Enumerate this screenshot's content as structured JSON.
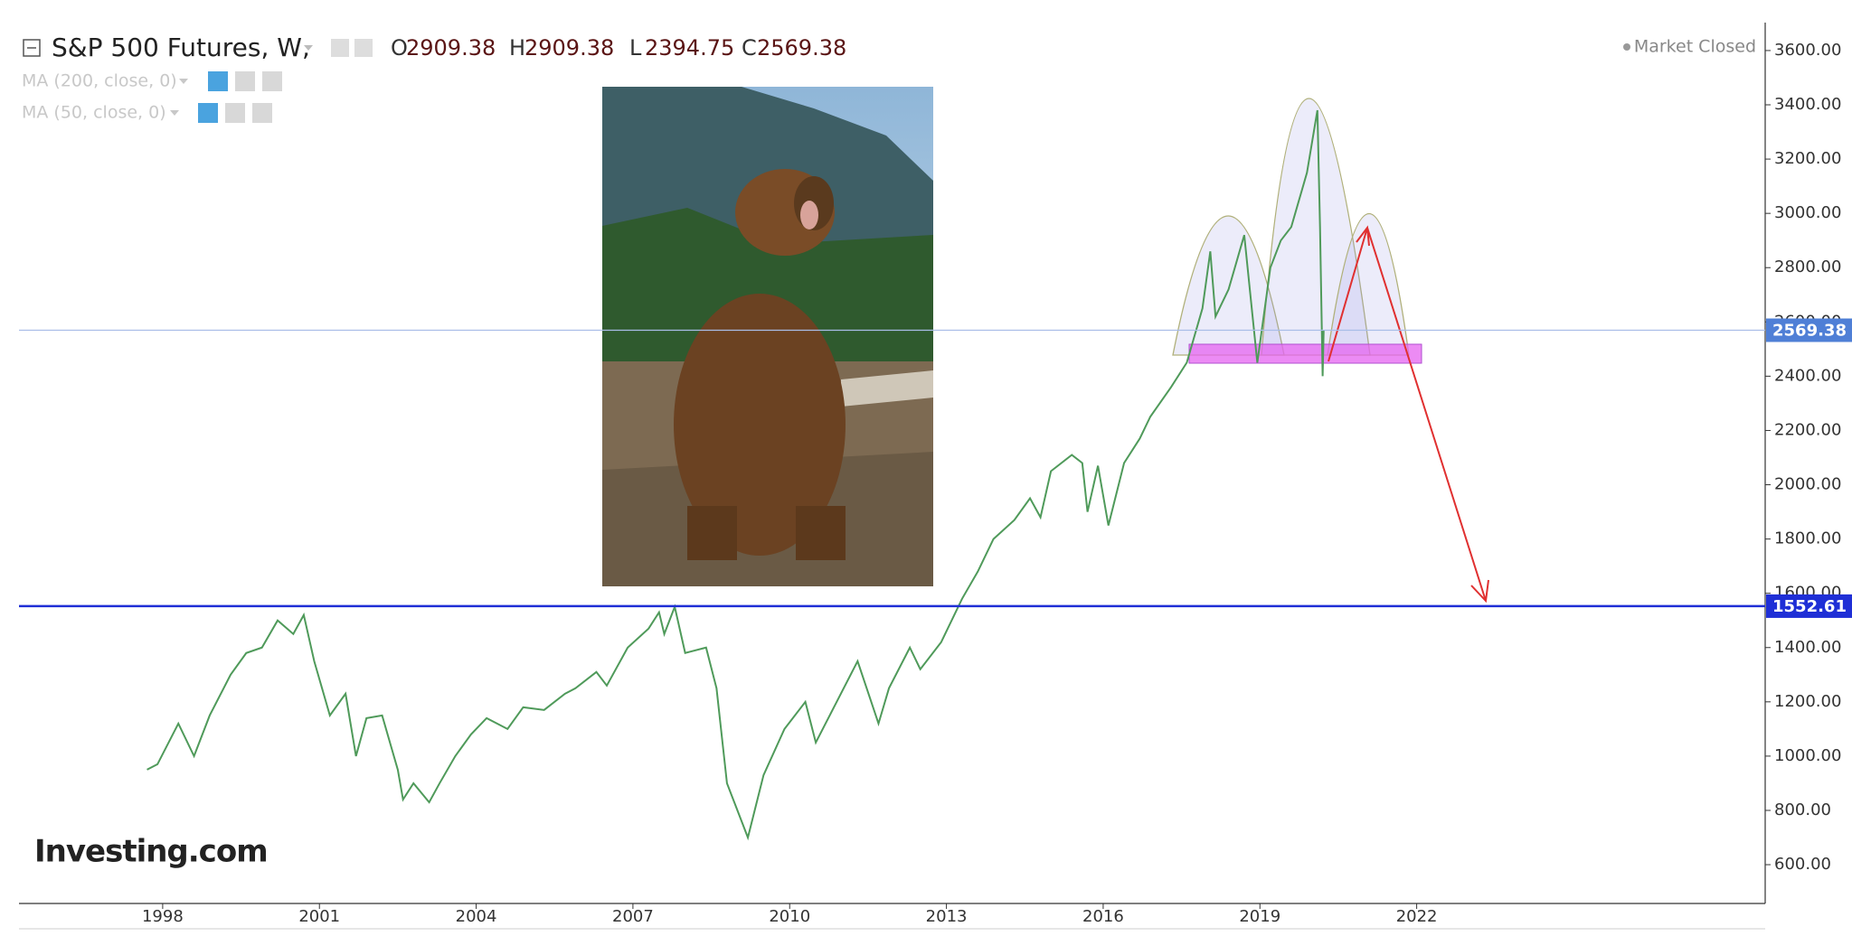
{
  "chart_data": {
    "type": "line",
    "title": "S&P 500 Futures, W,",
    "ohlc": [
      {
        "label": "O",
        "value": 2909.38
      },
      {
        "label": "H",
        "value": 2909.38
      },
      {
        "label": "L",
        "value": 2394.75
      },
      {
        "label": "C",
        "value": 2569.38
      }
    ],
    "indicators": [
      "MA (200, close, 0)",
      "MA (50, close, 0)"
    ],
    "status": "Market Closed",
    "logo": "Investing.com",
    "color": "#4f9a5a",
    "x": [
      1997.7,
      1997.9,
      1998.3,
      1998.6,
      1998.9,
      1999.3,
      1999.6,
      1999.9,
      2000.2,
      2000.5,
      2000.7,
      2000.9,
      2001.2,
      2001.5,
      2001.7,
      2001.9,
      2002.2,
      2002.5,
      2002.6,
      2002.8,
      2003.1,
      2003.3,
      2003.6,
      2003.9,
      2004.2,
      2004.6,
      2004.9,
      2005.3,
      2005.7,
      2005.9,
      2006.3,
      2006.5,
      2006.9,
      2007.3,
      2007.5,
      2007.6,
      2007.8,
      2008.0,
      2008.4,
      2008.6,
      2008.8,
      2008.9,
      2009.2,
      2009.5,
      2009.9,
      2010.3,
      2010.5,
      2010.9,
      2011.3,
      2011.7,
      2011.9,
      2012.3,
      2012.5,
      2012.9,
      2013.3,
      2013.6,
      2013.9,
      2014.3,
      2014.6,
      2014.8,
      2015.0,
      2015.4,
      2015.6,
      2015.7,
      2015.9,
      2016.1,
      2016.4,
      2016.7,
      2016.9,
      2017.3,
      2017.6,
      2017.9,
      2018.05,
      2018.15,
      2018.4,
      2018.7,
      2018.95,
      2019.2,
      2019.4,
      2019.6,
      2019.9,
      2020.1,
      2020.15,
      2020.2,
      2020.22
    ],
    "values": [
      950,
      970,
      1120,
      1000,
      1150,
      1300,
      1380,
      1400,
      1500,
      1450,
      1520,
      1350,
      1150,
      1230,
      1000,
      1140,
      1150,
      950,
      840,
      900,
      830,
      900,
      1000,
      1080,
      1140,
      1100,
      1180,
      1170,
      1230,
      1250,
      1310,
      1260,
      1400,
      1470,
      1530,
      1450,
      1550,
      1380,
      1400,
      1250,
      900,
      850,
      700,
      930,
      1100,
      1200,
      1050,
      1200,
      1350,
      1120,
      1250,
      1400,
      1320,
      1420,
      1580,
      1680,
      1800,
      1870,
      1950,
      1880,
      2050,
      2110,
      2080,
      1900,
      2070,
      1850,
      2080,
      2170,
      2250,
      2360,
      2450,
      2650,
      2860,
      2620,
      2720,
      2920,
      2450,
      2800,
      2900,
      2950,
      3150,
      3380,
      2950,
      2400,
      2569.38
    ],
    "xlim": [
      1995.25,
      2028.67
    ],
    "xticks": [
      1998,
      2001,
      2004,
      2007,
      2010,
      2013,
      2016,
      2019,
      2022
    ],
    "ylim": [
      457,
      3703
    ],
    "yticks": [
      {
        "value": 600,
        "label": "600.00"
      },
      {
        "value": 800,
        "label": "800.00"
      },
      {
        "value": 1000,
        "label": "1000.00"
      },
      {
        "value": 1200,
        "label": "1200.00"
      },
      {
        "value": 1400,
        "label": "1400.00"
      },
      {
        "value": 1600,
        "label": "1600.00"
      },
      {
        "value": 1800,
        "label": "1800.00"
      },
      {
        "value": 2000,
        "label": "2000.00"
      },
      {
        "value": 2200,
        "label": "2200.00"
      },
      {
        "value": 2400,
        "label": "2400.00"
      },
      {
        "value": 2600,
        "label": "2600.00"
      },
      {
        "value": 2800,
        "label": "2800.00"
      },
      {
        "value": 3000,
        "label": "3000.00"
      },
      {
        "value": 3200,
        "label": "3200.00"
      },
      {
        "value": 3400,
        "label": "3400.00"
      },
      {
        "value": 3600,
        "label": "3600.00"
      }
    ],
    "price_lines": [
      {
        "value": 2569.38,
        "color": "#a9bde8",
        "label_color": "#4f7fd6"
      },
      {
        "value": 1552.61,
        "color": "#1f2fd6",
        "label_color": "#1f2fd6"
      }
    ]
  }
}
